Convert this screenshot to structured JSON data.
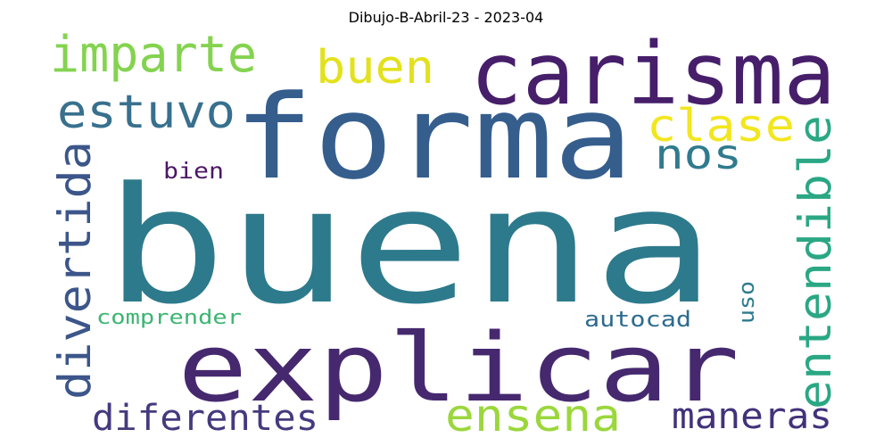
{
  "title": "Dibujo-B-Abril-23 - 2023-04",
  "words": [
    {
      "text": "buena",
      "color": "#2d7a8c"
    },
    {
      "text": "forma",
      "color": "#355e8d"
    },
    {
      "text": "explicar",
      "color": "#46286f"
    },
    {
      "text": "carisma",
      "color": "#461e6a"
    },
    {
      "text": "imparte",
      "color": "#84d350"
    },
    {
      "text": "buen",
      "color": "#e3e11d"
    },
    {
      "text": "estuvo",
      "color": "#38708e"
    },
    {
      "text": "clase",
      "color": "#f2e61e"
    },
    {
      "text": "nos",
      "color": "#307b8e"
    },
    {
      "text": "entendible",
      "color": "#2aa784"
    },
    {
      "text": "divertida",
      "color": "#3c568a"
    },
    {
      "text": "bien",
      "color": "#4c1765"
    },
    {
      "text": "comprender",
      "color": "#3cb572"
    },
    {
      "text": "autocad",
      "color": "#2d6b8e"
    },
    {
      "text": "uso",
      "color": "#2e7b8e"
    },
    {
      "text": "diferentes",
      "color": "#453a7e"
    },
    {
      "text": "ensena",
      "color": "#9bd73c"
    },
    {
      "text": "maneras",
      "color": "#43327a"
    }
  ]
}
